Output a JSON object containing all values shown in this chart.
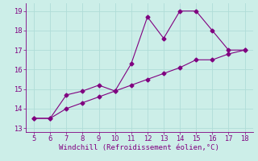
{
  "xlabel": "Windchill (Refroidissement éolien,°C)",
  "bg_color": "#cceee8",
  "line_color": "#800080",
  "grid_color": "#b0ddd8",
  "line1_x": [
    5,
    6,
    7,
    8,
    9,
    10,
    11,
    12,
    13,
    14,
    15,
    16,
    17,
    18
  ],
  "line1_y": [
    13.5,
    13.5,
    14.7,
    14.9,
    15.2,
    14.9,
    16.3,
    18.7,
    17.6,
    19.0,
    19.0,
    18.0,
    17.0,
    17.0
  ],
  "line2_x": [
    5,
    6,
    7,
    8,
    9,
    10,
    11,
    12,
    13,
    14,
    15,
    16,
    17,
    18
  ],
  "line2_y": [
    13.5,
    13.5,
    14.0,
    14.3,
    14.6,
    14.9,
    15.2,
    15.5,
    15.8,
    16.1,
    16.5,
    16.5,
    16.8,
    17.0
  ],
  "xlim": [
    4.5,
    18.5
  ],
  "ylim": [
    12.8,
    19.4
  ],
  "xticks": [
    5,
    6,
    7,
    8,
    9,
    10,
    11,
    12,
    13,
    14,
    15,
    16,
    17,
    18
  ],
  "yticks": [
    13,
    14,
    15,
    16,
    17,
    18,
    19
  ],
  "tick_color": "#800080",
  "tick_fontsize": 6,
  "xlabel_fontsize": 6.5,
  "marker": "D",
  "markersize": 2.5
}
